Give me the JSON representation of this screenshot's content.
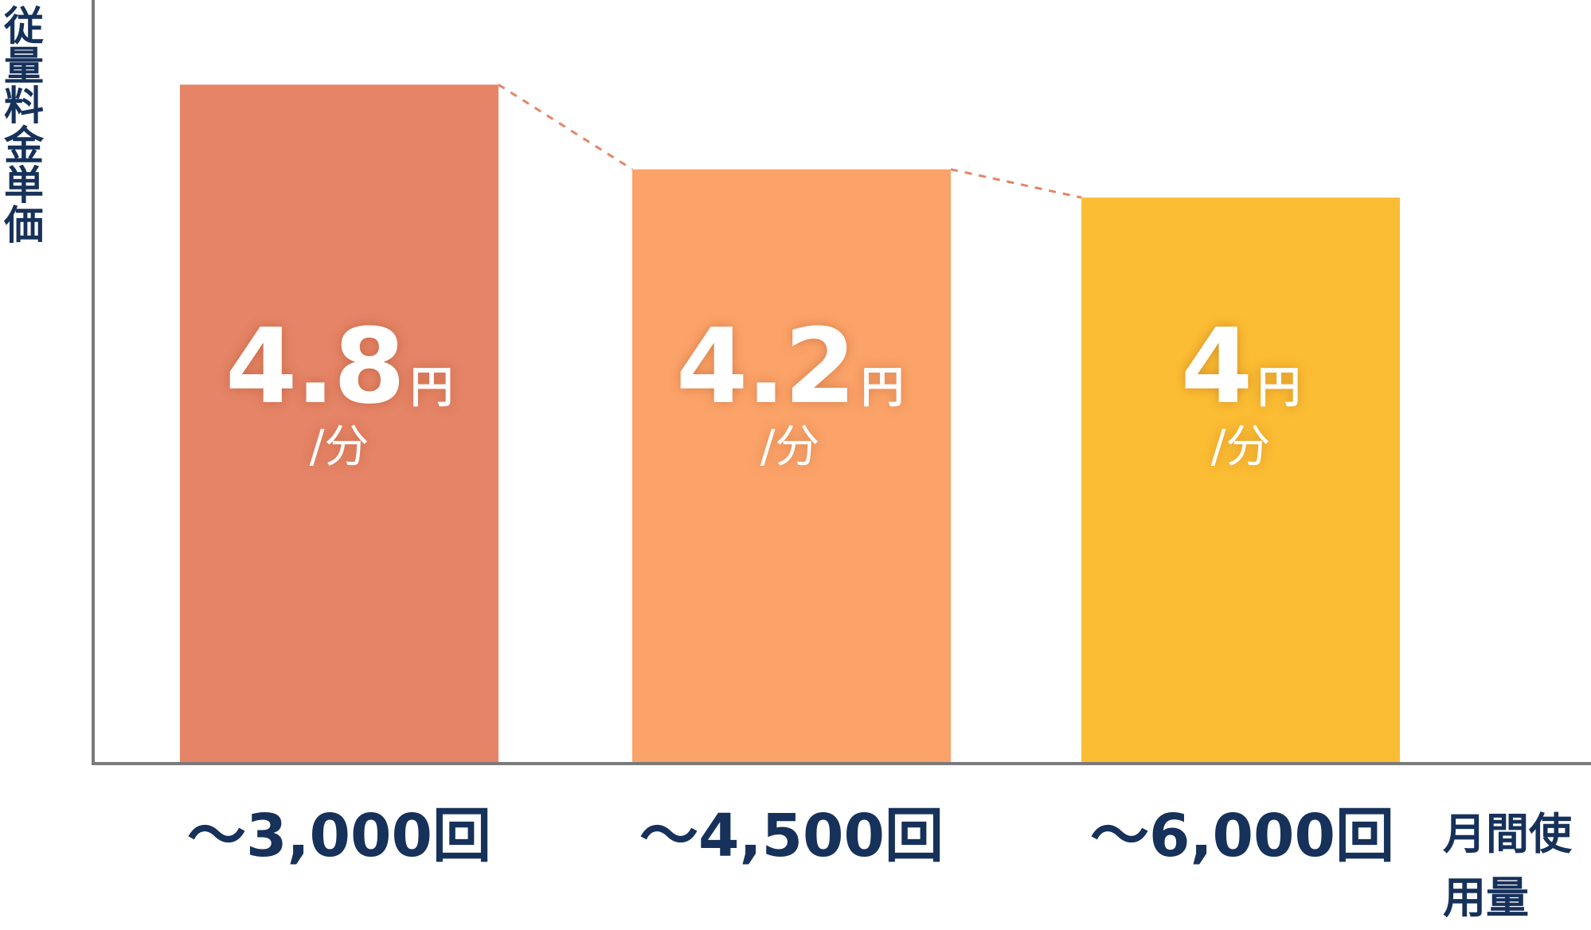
{
  "chart_data": {
    "type": "bar",
    "ylabel": "従量料金単価",
    "xlabel": "月間使用量",
    "categories": [
      "〜3,000回",
      "〜4,500回",
      "〜6,000回"
    ],
    "values": [
      4.8,
      4.2,
      4.0
    ],
    "value_labels": [
      "4.8",
      "4.2",
      "4"
    ],
    "value_unit": "円",
    "value_per": "/分",
    "colors": [
      "#e58466",
      "#fba369",
      "#fbbd33"
    ],
    "connector_color": "#e58466",
    "connector_style": "dashed",
    "ylim": [
      0,
      5.4
    ],
    "grid": false,
    "legend": "none"
  }
}
